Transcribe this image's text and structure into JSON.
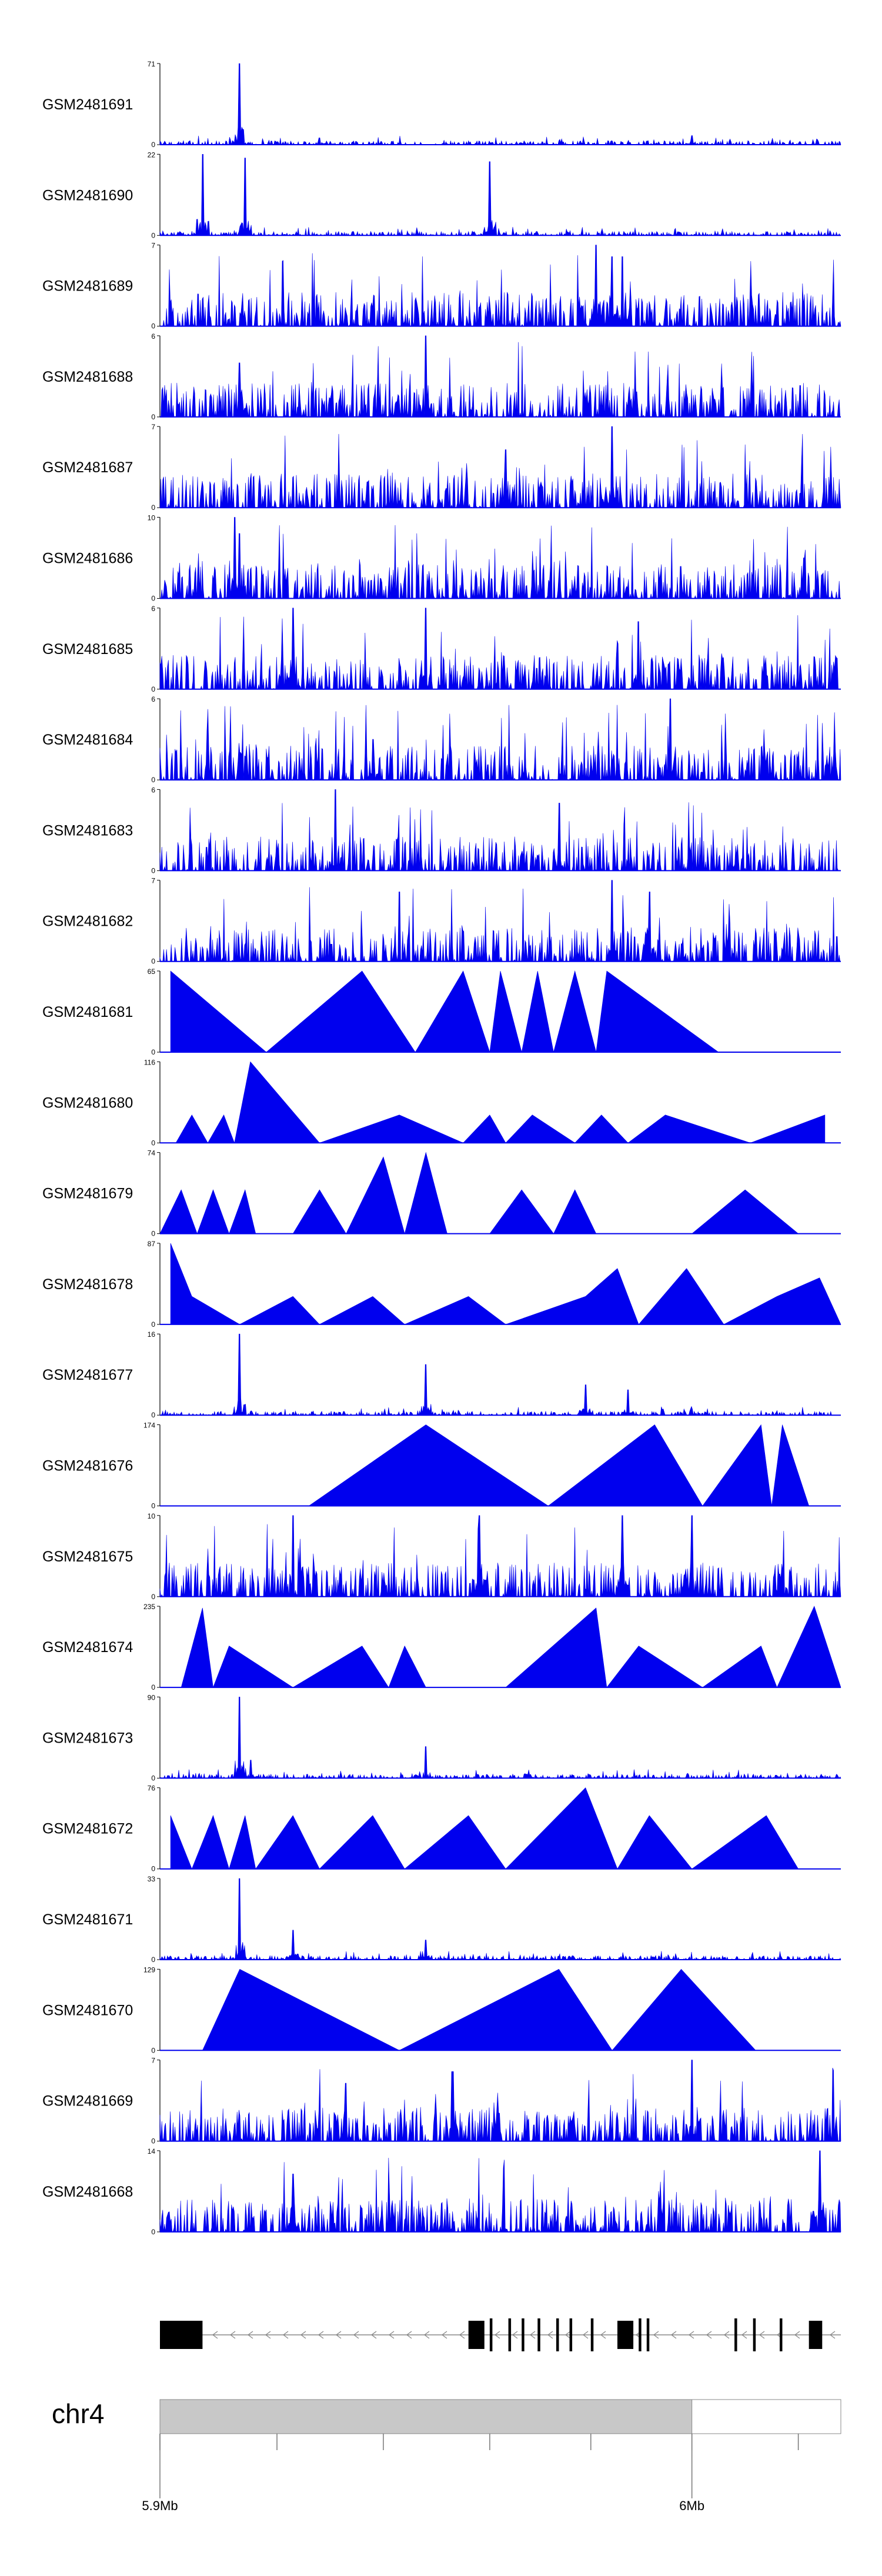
{
  "chart_data": {
    "type": "area",
    "title": "",
    "region": {
      "chrom": "chr4",
      "start_mb": 5.9,
      "end_mb": 6.028
    },
    "color": "#0000ee",
    "tracks": [
      {
        "name": "GSM2481691",
        "ymax": 71,
        "style": "sparse",
        "peaks": [
          [
            5.915,
            71
          ],
          [
            6.0,
            8
          ],
          [
            5.93,
            6
          ]
        ]
      },
      {
        "name": "GSM2481690",
        "ymax": 22,
        "style": "spiky",
        "peaks": [
          [
            5.908,
            22
          ],
          [
            5.916,
            21
          ],
          [
            5.962,
            20
          ]
        ]
      },
      {
        "name": "GSM2481689",
        "ymax": 7,
        "style": "dense",
        "peaks": [
          [
            5.982,
            7
          ],
          [
            5.985,
            6
          ],
          [
            5.987,
            6
          ]
        ]
      },
      {
        "name": "GSM2481688",
        "ymax": 6,
        "style": "dense",
        "peaks": [
          [
            5.95,
            6
          ],
          [
            5.915,
            4
          ]
        ]
      },
      {
        "name": "GSM2481687",
        "ymax": 7,
        "style": "dense",
        "peaks": [
          [
            5.985,
            7
          ],
          [
            5.965,
            5
          ]
        ]
      },
      {
        "name": "GSM2481686",
        "ymax": 10,
        "style": "dense",
        "peaks": [
          [
            5.914,
            10
          ],
          [
            5.915,
            8
          ],
          [
            6.021,
            5
          ]
        ]
      },
      {
        "name": "GSM2481685",
        "ymax": 6,
        "style": "dense",
        "peaks": [
          [
            5.925,
            6
          ],
          [
            5.95,
            6
          ],
          [
            5.99,
            5
          ]
        ]
      },
      {
        "name": "GSM2481684",
        "ymax": 6,
        "style": "dense",
        "peaks": [
          [
            5.996,
            6
          ],
          [
            5.94,
            3
          ]
        ]
      },
      {
        "name": "GSM2481683",
        "ymax": 6,
        "style": "dense",
        "peaks": [
          [
            5.933,
            6
          ],
          [
            5.975,
            5
          ]
        ]
      },
      {
        "name": "GSM2481682",
        "ymax": 7,
        "style": "dense",
        "peaks": [
          [
            5.985,
            7
          ],
          [
            5.945,
            6
          ],
          [
            5.992,
            6
          ]
        ]
      },
      {
        "name": "GSM2481681",
        "ymax": 65,
        "style": "triangles",
        "peaks": [
          [
            5.902,
            65
          ],
          [
            5.92,
            0
          ],
          [
            5.938,
            65
          ],
          [
            5.948,
            0
          ],
          [
            5.957,
            65
          ],
          [
            5.962,
            0
          ],
          [
            5.964,
            65
          ],
          [
            5.968,
            0
          ],
          [
            5.971,
            65
          ],
          [
            5.974,
            0
          ],
          [
            5.978,
            65
          ],
          [
            5.982,
            0
          ],
          [
            5.984,
            65
          ],
          [
            6.005,
            0
          ]
        ]
      },
      {
        "name": "GSM2481680",
        "ymax": 116,
        "style": "triangles",
        "peaks": [
          [
            5.903,
            0
          ],
          [
            5.906,
            40
          ],
          [
            5.909,
            0
          ],
          [
            5.912,
            40
          ],
          [
            5.914,
            0
          ],
          [
            5.917,
            116
          ],
          [
            5.93,
            0
          ],
          [
            5.945,
            40
          ],
          [
            5.957,
            0
          ],
          [
            5.962,
            40
          ],
          [
            5.965,
            0
          ],
          [
            5.97,
            40
          ],
          [
            5.978,
            0
          ],
          [
            5.983,
            40
          ],
          [
            5.988,
            0
          ],
          [
            5.995,
            40
          ],
          [
            6.011,
            0
          ],
          [
            6.025,
            40
          ]
        ]
      },
      {
        "name": "GSM2481679",
        "ymax": 74,
        "style": "triangles",
        "peaks": [
          [
            5.9,
            0
          ],
          [
            5.904,
            40
          ],
          [
            5.907,
            0
          ],
          [
            5.91,
            40
          ],
          [
            5.913,
            0
          ],
          [
            5.916,
            40
          ],
          [
            5.918,
            0
          ],
          [
            5.925,
            0
          ],
          [
            5.93,
            40
          ],
          [
            5.935,
            0
          ],
          [
            5.942,
            70
          ],
          [
            5.946,
            0
          ],
          [
            5.95,
            74
          ],
          [
            5.954,
            0
          ],
          [
            5.962,
            0
          ],
          [
            5.968,
            40
          ],
          [
            5.974,
            0
          ],
          [
            5.978,
            40
          ],
          [
            5.982,
            0
          ],
          [
            6.0,
            0
          ],
          [
            6.01,
            40
          ],
          [
            6.02,
            0
          ]
        ]
      },
      {
        "name": "GSM2481678",
        "ymax": 87,
        "style": "triangles",
        "peaks": [
          [
            5.902,
            87
          ],
          [
            5.906,
            30
          ],
          [
            5.915,
            0
          ],
          [
            5.925,
            30
          ],
          [
            5.93,
            0
          ],
          [
            5.94,
            30
          ],
          [
            5.946,
            0
          ],
          [
            5.958,
            30
          ],
          [
            5.965,
            0
          ],
          [
            5.98,
            30
          ],
          [
            5.986,
            60
          ],
          [
            5.99,
            0
          ],
          [
            5.999,
            60
          ],
          [
            6.006,
            0
          ],
          [
            6.016,
            30
          ],
          [
            6.024,
            50
          ],
          [
            6.028,
            0
          ]
        ]
      },
      {
        "name": "GSM2481677",
        "ymax": 16,
        "style": "sparse",
        "peaks": [
          [
            5.915,
            16
          ],
          [
            5.95,
            10
          ],
          [
            5.98,
            6
          ],
          [
            5.988,
            5
          ]
        ]
      },
      {
        "name": "GSM2481676",
        "ymax": 174,
        "style": "triangles",
        "peaks": [
          [
            5.928,
            0
          ],
          [
            5.95,
            174
          ],
          [
            5.973,
            0
          ],
          [
            5.993,
            174
          ],
          [
            6.002,
            0
          ],
          [
            6.013,
            174
          ],
          [
            6.015,
            0
          ],
          [
            6.017,
            174
          ],
          [
            6.022,
            0
          ]
        ]
      },
      {
        "name": "GSM2481675",
        "ymax": 10,
        "style": "dense",
        "peaks": [
          [
            5.925,
            10
          ],
          [
            5.96,
            10
          ],
          [
            5.987,
            10
          ],
          [
            6.0,
            10
          ]
        ]
      },
      {
        "name": "GSM2481674",
        "ymax": 235,
        "style": "triangles",
        "peaks": [
          [
            5.904,
            0
          ],
          [
            5.908,
            230
          ],
          [
            5.91,
            0
          ],
          [
            5.913,
            120
          ],
          [
            5.925,
            0
          ],
          [
            5.938,
            120
          ],
          [
            5.943,
            0
          ],
          [
            5.946,
            120
          ],
          [
            5.95,
            0
          ],
          [
            5.965,
            0
          ],
          [
            5.982,
            230
          ],
          [
            5.984,
            0
          ],
          [
            5.99,
            120
          ],
          [
            6.002,
            0
          ],
          [
            6.013,
            120
          ],
          [
            6.016,
            0
          ],
          [
            6.023,
            235
          ],
          [
            6.028,
            0
          ]
        ]
      },
      {
        "name": "GSM2481673",
        "ymax": 90,
        "style": "sparse",
        "peaks": [
          [
            5.915,
            90
          ],
          [
            5.95,
            35
          ],
          [
            5.917,
            20
          ]
        ]
      },
      {
        "name": "GSM2481672",
        "ymax": 76,
        "style": "triangles",
        "peaks": [
          [
            5.902,
            50
          ],
          [
            5.906,
            0
          ],
          [
            5.91,
            50
          ],
          [
            5.913,
            0
          ],
          [
            5.916,
            50
          ],
          [
            5.918,
            0
          ],
          [
            5.925,
            50
          ],
          [
            5.93,
            0
          ],
          [
            5.94,
            50
          ],
          [
            5.946,
            0
          ],
          [
            5.958,
            50
          ],
          [
            5.965,
            0
          ],
          [
            5.98,
            76
          ],
          [
            5.986,
            0
          ],
          [
            5.992,
            50
          ],
          [
            6.0,
            0
          ],
          [
            6.014,
            50
          ],
          [
            6.02,
            0
          ]
        ]
      },
      {
        "name": "GSM2481671",
        "ymax": 33,
        "style": "sparse",
        "peaks": [
          [
            5.915,
            33
          ],
          [
            5.925,
            12
          ],
          [
            5.95,
            8
          ]
        ]
      },
      {
        "name": "GSM2481670",
        "ymax": 129,
        "style": "triangles",
        "peaks": [
          [
            5.908,
            0
          ],
          [
            5.915,
            129
          ],
          [
            5.945,
            0
          ],
          [
            5.975,
            129
          ],
          [
            5.985,
            0
          ],
          [
            5.998,
            129
          ],
          [
            6.012,
            0
          ]
        ]
      },
      {
        "name": "GSM2481669",
        "ymax": 7,
        "style": "dense",
        "peaks": [
          [
            6.0,
            7
          ],
          [
            5.955,
            6
          ],
          [
            5.935,
            5
          ]
        ]
      },
      {
        "name": "GSM2481668",
        "ymax": 14,
        "style": "dense",
        "peaks": [
          [
            6.024,
            14
          ],
          [
            5.925,
            10
          ]
        ]
      }
    ],
    "gene_track": {
      "strand": "minus",
      "exons_mb": [
        [
          5.9,
          5.908
        ],
        [
          5.958,
          5.961
        ],
        [
          5.962,
          5.9625
        ],
        [
          5.9655,
          5.966
        ],
        [
          5.968,
          5.9685
        ],
        [
          5.971,
          5.9715
        ],
        [
          5.9745,
          5.975
        ],
        [
          5.977,
          5.9775
        ],
        [
          5.981,
          5.9815
        ],
        [
          5.986,
          5.989
        ],
        [
          5.99,
          5.9905
        ],
        [
          5.9915,
          5.992
        ],
        [
          6.008,
          6.0085
        ],
        [
          6.0115,
          6.012
        ],
        [
          6.0165,
          6.017
        ],
        [
          6.022,
          6.0245
        ]
      ]
    },
    "ideogram": {
      "chrom_label": "chr4",
      "shaded_range_mb": [
        5.9,
        6.0
      ],
      "minor_ticks_mb": [
        5.9,
        5.922,
        5.942,
        5.962,
        5.981,
        6.0,
        6.02
      ],
      "labeled_ticks": [
        {
          "mb": 5.9,
          "label": "5.9Mb"
        },
        {
          "mb": 6.0,
          "label": "6Mb"
        }
      ]
    }
  }
}
